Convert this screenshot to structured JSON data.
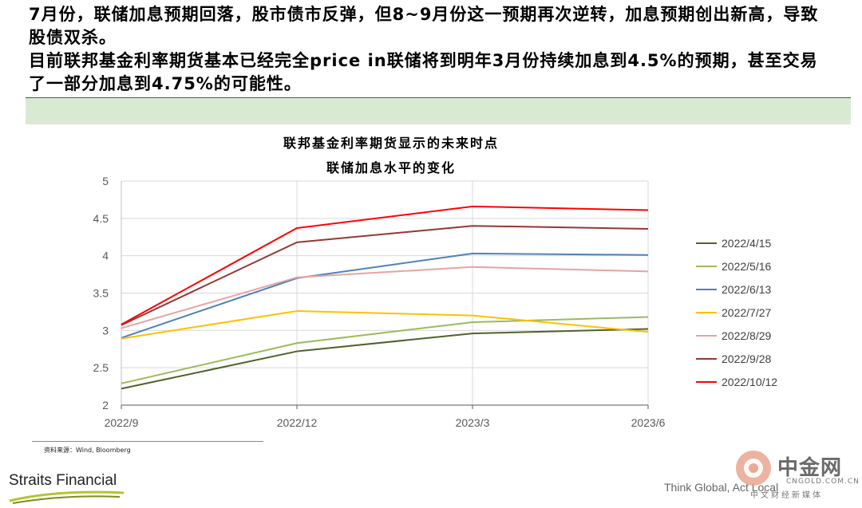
{
  "headline": {
    "line1": "7月份，联储加息预期回落，股市债市反弹，但8~9月份这一预期再次逆转，加息预期创出新高，导致股债双杀。",
    "line2": "目前联邦基金利率期货基本已经完全price in联储将到明年3月份持续加息到4.5%的预期，甚至交易了一部分加息到4.75%的可能性。"
  },
  "source": "资料来源：Wind, Bloomberg",
  "footer": {
    "logo_text": "Straits Financial",
    "tagline": "Think Global, Act Local",
    "watermark_cn": "中金网",
    "watermark_domain": "CNGOLD.COM.CN",
    "watermark_sub": "中文财经新媒体"
  },
  "colors": {
    "band": "#d9ead3",
    "grid": "#d9d9d9"
  },
  "chart_data": {
    "type": "line",
    "title": "联邦基金利率期货显示的未来时点",
    "subtitle": "联储加息水平的变化",
    "categories": [
      "2022/9",
      "2022/12",
      "2023/3",
      "2023/6"
    ],
    "yticks": [
      "2",
      "2.5",
      "3",
      "3.5",
      "4",
      "4.5",
      "5"
    ],
    "ylim": [
      2,
      5
    ],
    "grid": true,
    "legend_position": "right",
    "series": [
      {
        "name": "2022/4/15",
        "color": "#4f6228",
        "values": [
          2.22,
          2.72,
          2.96,
          3.02
        ]
      },
      {
        "name": "2022/5/16",
        "color": "#9bbb59",
        "values": [
          2.29,
          2.83,
          3.11,
          3.18
        ]
      },
      {
        "name": "2022/6/13",
        "color": "#4f81bd",
        "values": [
          2.9,
          3.7,
          4.03,
          4.01
        ]
      },
      {
        "name": "2022/7/27",
        "color": "#ffc000",
        "values": [
          2.89,
          3.26,
          3.2,
          2.98
        ]
      },
      {
        "name": "2022/8/29",
        "color": "#e6a3a3",
        "values": [
          3.03,
          3.71,
          3.85,
          3.79
        ]
      },
      {
        "name": "2022/9/28",
        "color": "#953735",
        "values": [
          3.07,
          4.18,
          4.4,
          4.36
        ]
      },
      {
        "name": "2022/10/12",
        "color": "#ff0000",
        "values": [
          3.08,
          4.37,
          4.66,
          4.61
        ]
      }
    ]
  }
}
